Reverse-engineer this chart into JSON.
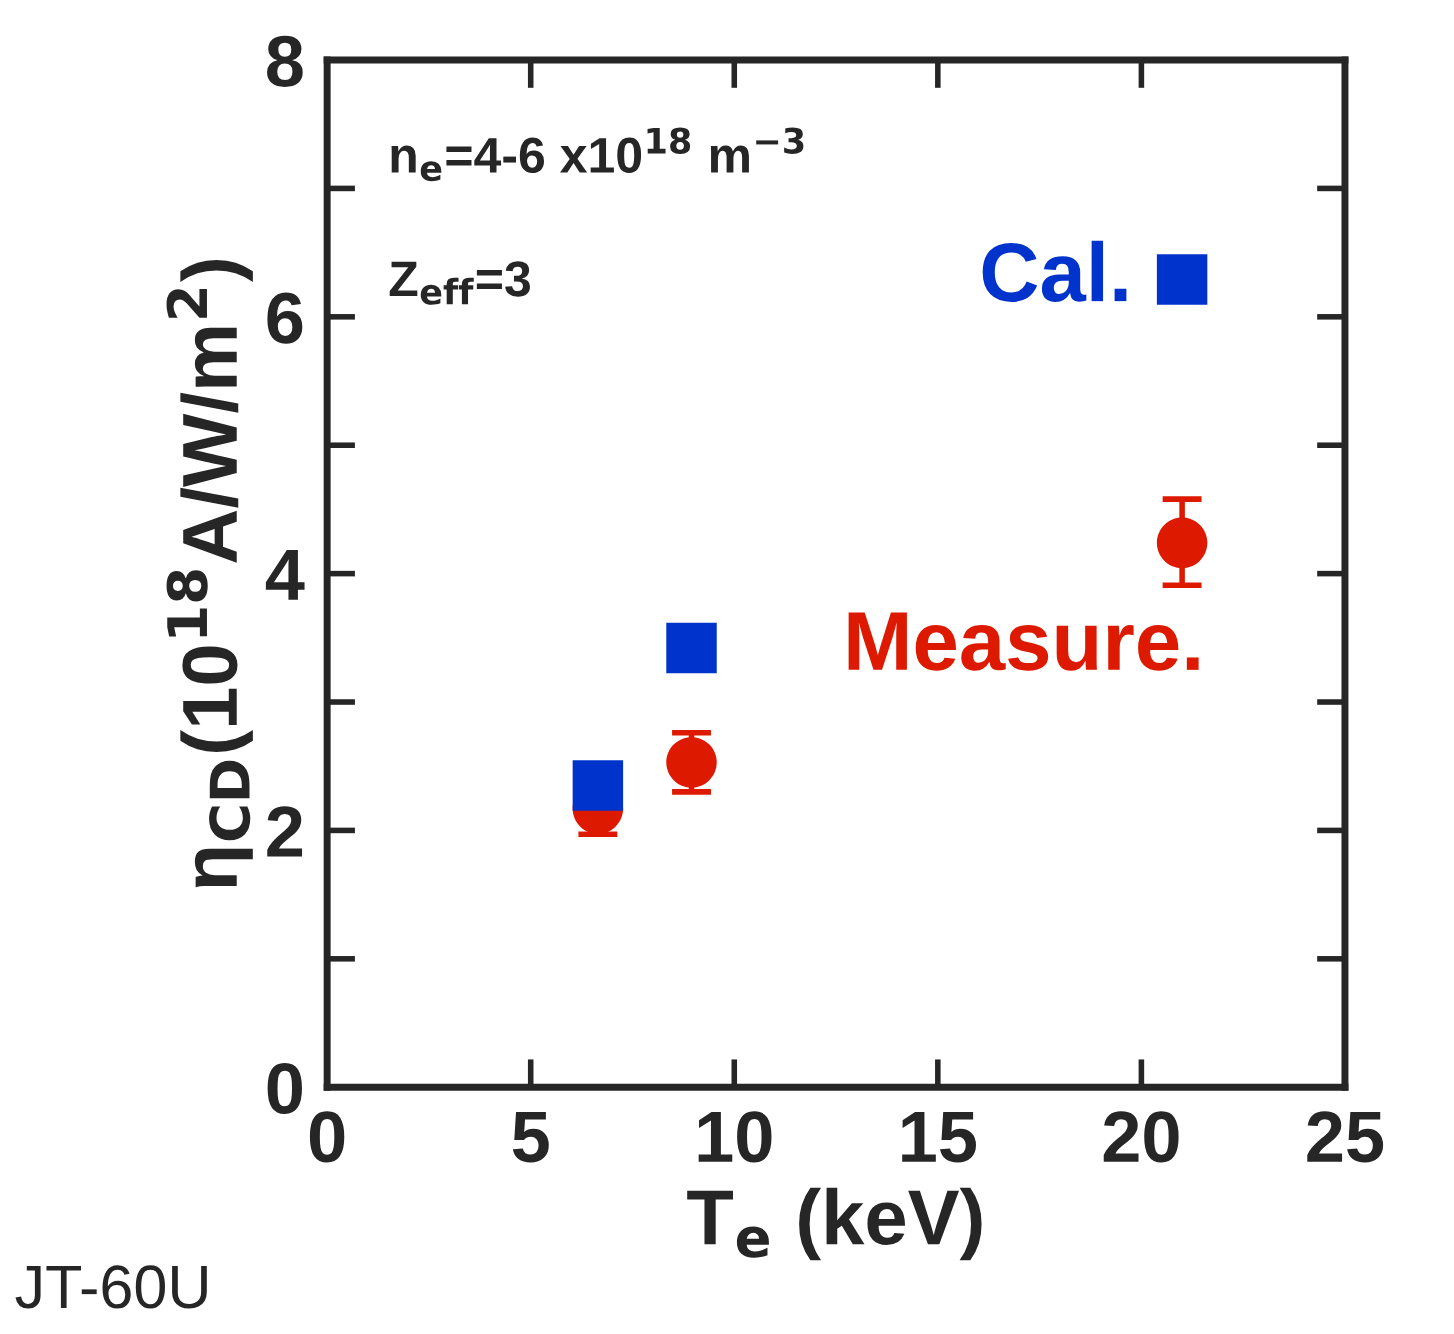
{
  "chart_data": {
    "type": "scatter",
    "xlabel": "T$_{e}$ (keV)",
    "ylabel": "η$_{CD}$(10$^{18}$A/W/m$^{2}$)",
    "series": [
      {
        "name": "Cal.",
        "color": "#0033cc",
        "marker": "square",
        "x": [
          6.65,
          8.95,
          21.0
        ],
        "values": [
          2.35,
          3.42,
          6.29
        ]
      },
      {
        "name": "Measure.",
        "color": "#dd1a00",
        "marker": "circle",
        "x": [
          6.65,
          8.95,
          21.0
        ],
        "values": [
          2.17,
          2.53,
          4.24
        ],
        "errors": [
          [
            1.97,
            2.17
          ],
          [
            2.3,
            2.76
          ],
          [
            3.91,
            4.58
          ]
        ]
      }
    ],
    "xlim": [
      0,
      25
    ],
    "xticks": [
      0,
      5,
      10,
      15,
      20,
      25
    ],
    "ylim": [
      0,
      8
    ],
    "yticks": [
      0,
      {
        "value": 1,
        "label": null
      },
      2,
      {
        "value": 3,
        "label": null
      },
      4,
      {
        "value": 5,
        "label": null
      },
      6,
      {
        "value": 7,
        "label": null
      },
      8
    ],
    "grid": false,
    "annotations": [
      "n$_{e}$=4-6 x10$^{18}$ m$^{−3}$",
      "Z$_{eff}$=3",
      "JT-60U"
    ]
  }
}
